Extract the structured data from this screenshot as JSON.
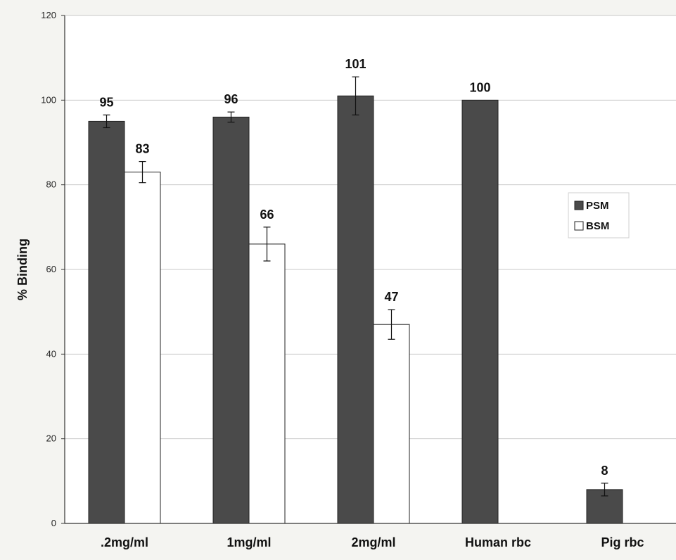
{
  "chart_data": {
    "type": "bar",
    "title": "",
    "xlabel": "",
    "ylabel": "% Binding",
    "ylim": [
      0,
      120
    ],
    "yticks": [
      0,
      20,
      40,
      60,
      80,
      100,
      120
    ],
    "grid": true,
    "legend_position": "right",
    "categories": [
      ".2mg/ml",
      "1mg/ml",
      "2mg/ml",
      "Human rbc",
      "Pig rbc"
    ],
    "series": [
      {
        "name": "PSM",
        "color": "#4a4a4a",
        "values": [
          95,
          96,
          101,
          100,
          8
        ],
        "errors": [
          1.5,
          1.2,
          4.5,
          null,
          1.5
        ],
        "data_labels": [
          "95",
          "96",
          "101",
          "100",
          "8"
        ]
      },
      {
        "name": "BSM",
        "color": "#ffffff",
        "values": [
          83,
          66,
          47,
          null,
          null
        ],
        "errors": [
          2.5,
          4,
          3.5,
          null,
          null
        ],
        "data_labels": [
          "83",
          "66",
          "47",
          "",
          ""
        ]
      }
    ]
  }
}
